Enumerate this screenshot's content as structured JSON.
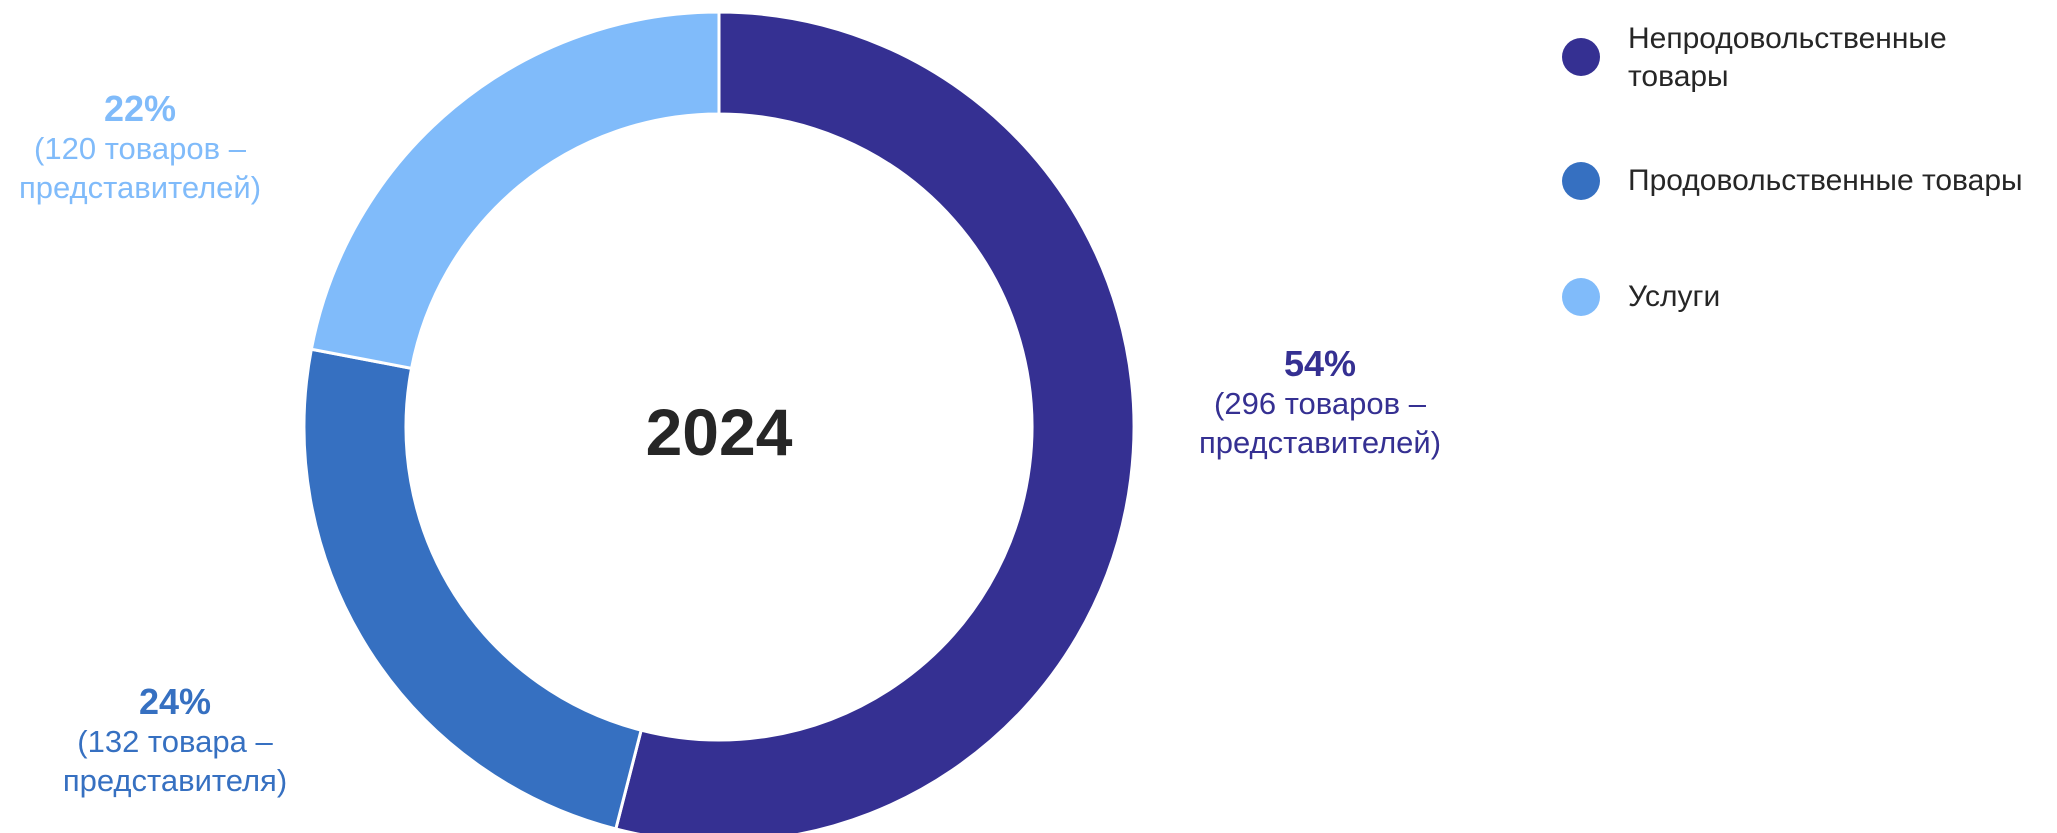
{
  "chart_data": {
    "type": "pie",
    "variant": "donut",
    "center_label": "2024",
    "series": [
      {
        "name": "Непродовольственные товары",
        "value": 54,
        "value_label": "54%",
        "detail_label": "(296 товаров – представителей)",
        "count": 296,
        "color": "#353092"
      },
      {
        "name": "Продовольственные товары",
        "value": 24,
        "value_label": "24%",
        "detail_label": "(132 товара – представителя)",
        "count": 132,
        "color": "#3670c1"
      },
      {
        "name": "Услуги",
        "value": 22,
        "value_label": "22%",
        "detail_label": "(120 товаров – представителей)",
        "count": 120,
        "color": "#80bbfa"
      }
    ],
    "legend_placement": "top-right"
  }
}
